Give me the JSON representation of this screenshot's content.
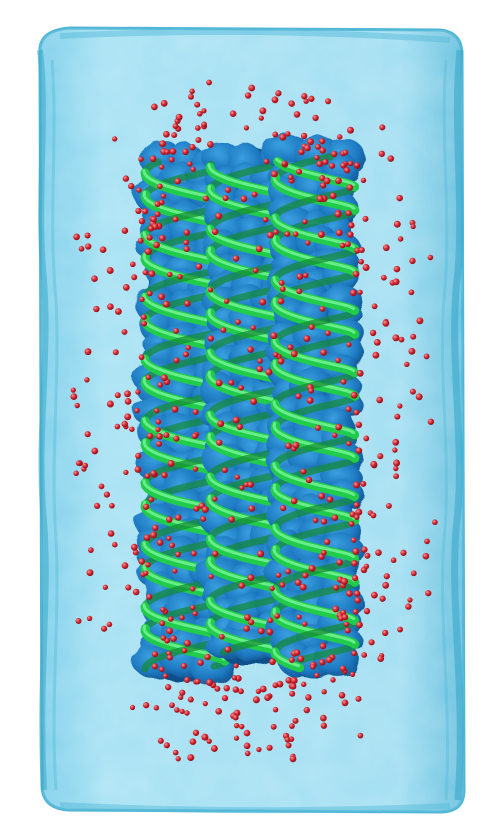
{
  "scene": {
    "subject": "dna-origami-helix-bundle-in-water-box",
    "colors": {
      "background": "#ffffff",
      "water_box_fill": "#8fd6ee",
      "water_box_edge": "#3aa9c9",
      "nucleotide_surface": "#1f7fc4",
      "nucleotide_shadow": "#0f4f8a",
      "backbone": "#20cc4a",
      "backbone_highlight": "#7cf59a",
      "ion": "#d0202a",
      "ion_highlight": "#ff8a8a"
    },
    "helix_count": 3,
    "ion_count": 650
  }
}
